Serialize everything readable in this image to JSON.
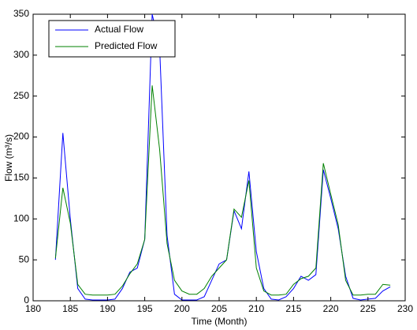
{
  "chart_data": {
    "type": "line",
    "xlabel": "Time (Month)",
    "ylabel": "Flow (m³/s)",
    "x": [
      183,
      184,
      185,
      186,
      187,
      188,
      189,
      190,
      191,
      192,
      193,
      194,
      195,
      196,
      197,
      198,
      199,
      200,
      201,
      202,
      203,
      204,
      205,
      206,
      207,
      208,
      209,
      210,
      211,
      212,
      213,
      214,
      215,
      216,
      217,
      218,
      219,
      220,
      221,
      222,
      223,
      224,
      225,
      226,
      227,
      228
    ],
    "series": [
      {
        "name": "Actual Flow",
        "color": "#0000ff",
        "values": [
          50,
          205,
          100,
          15,
          2,
          1,
          1,
          1,
          2,
          15,
          35,
          40,
          75,
          350,
          310,
          80,
          8,
          1,
          1,
          1,
          5,
          25,
          45,
          50,
          110,
          88,
          158,
          60,
          15,
          2,
          1,
          5,
          15,
          30,
          25,
          32,
          160,
          125,
          88,
          30,
          3,
          1,
          2,
          3,
          12,
          17
        ]
      },
      {
        "name": "Predicted Flow",
        "color": "#008000",
        "values": [
          52,
          138,
          95,
          20,
          8,
          7,
          7,
          7,
          8,
          18,
          33,
          45,
          75,
          263,
          185,
          70,
          25,
          12,
          8,
          8,
          15,
          30,
          40,
          50,
          112,
          102,
          147,
          40,
          12,
          7,
          7,
          8,
          20,
          27,
          30,
          40,
          168,
          130,
          93,
          25,
          7,
          7,
          8,
          8,
          20,
          19
        ]
      }
    ],
    "xlim": [
      180,
      230
    ],
    "xticks": [
      180,
      185,
      190,
      195,
      200,
      205,
      210,
      215,
      220,
      225,
      230
    ],
    "ylim": [
      0,
      350
    ],
    "yticks": [
      0,
      50,
      100,
      150,
      200,
      250,
      300,
      350
    ],
    "legend": "upper-left"
  }
}
